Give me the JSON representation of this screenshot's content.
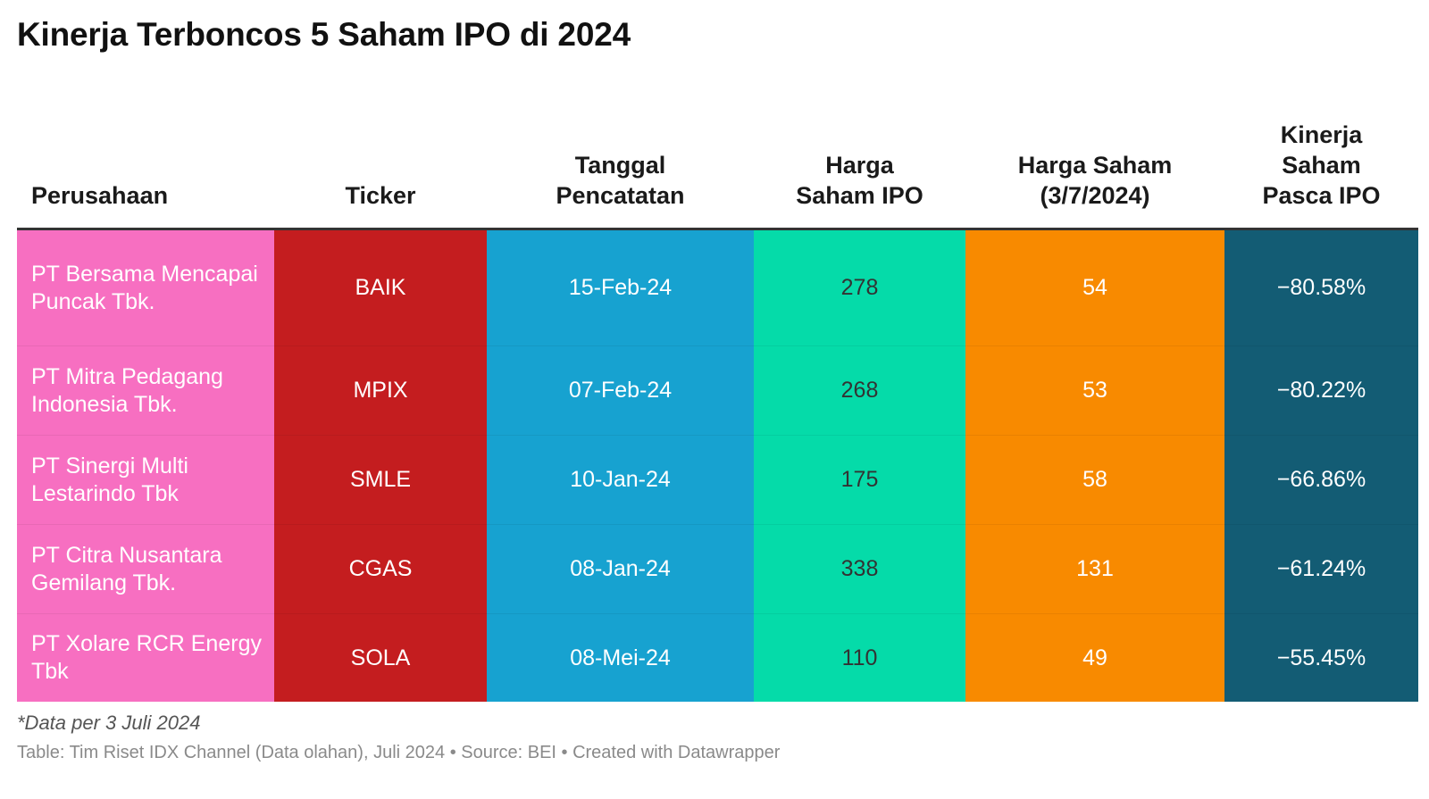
{
  "title": "Kinerja Terboncos 5 Saham IPO di 2024",
  "chart_data": {
    "type": "table",
    "title": "Kinerja Terboncos 5 Saham IPO di 2024",
    "columns": [
      {
        "label": "Perusahaan",
        "color": "#f76fc1",
        "text_color": "#ffffff"
      },
      {
        "label": "Ticker",
        "color": "#c41d1f",
        "text_color": "#ffffff"
      },
      {
        "label": "Tanggal\nPencatatan",
        "color": "#17a2d0",
        "text_color": "#ffffff"
      },
      {
        "label": "Harga\nSaham IPO",
        "color": "#05dba9",
        "text_color": "#333333"
      },
      {
        "label": "Harga Saham\n(3/7/2024)",
        "color": "#f88a00",
        "text_color": "#ffffff"
      },
      {
        "label": "Kinerja\nSaham\nPasca IPO",
        "color": "#135c74",
        "text_color": "#ffffff"
      }
    ],
    "rows": [
      [
        "PT Bersama Mencapai Puncak Tbk.",
        "BAIK",
        "15-Feb-24",
        "278",
        "54",
        "−80.58%"
      ],
      [
        "PT Mitra Pedagang Indonesia Tbk.",
        "MPIX",
        "07-Feb-24",
        "268",
        "53",
        "−80.22%"
      ],
      [
        "PT Sinergi Multi Lestarindo Tbk",
        "SMLE",
        "10-Jan-24",
        "175",
        "58",
        "−66.86%"
      ],
      [
        "PT Citra Nusantara Gemilang Tbk.",
        "CGAS",
        "08-Jan-24",
        "338",
        "131",
        "−61.24%"
      ],
      [
        "PT Xolare RCR Energy Tbk",
        "SOLA",
        "08-Mei-24",
        "110",
        "49",
        "−55.45%"
      ]
    ]
  },
  "note": "*Data per 3 Juli 2024",
  "source": "Table: Tim Riset IDX Channel (Data olahan), Juli 2024 • Source: BEI • Created with Datawrapper"
}
